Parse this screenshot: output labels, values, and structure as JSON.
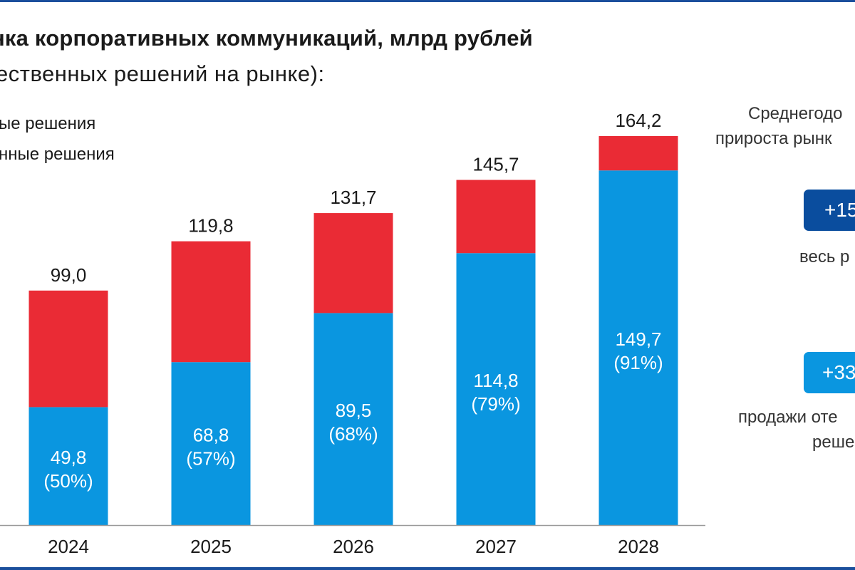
{
  "header": {
    "title": "нка корпоративных  коммуникаций, млрд рублей",
    "subtitle": "ественных  решений  на рынке):"
  },
  "legend": {
    "item1": "ые решения",
    "item2": "нные решения"
  },
  "side_panel": {
    "cagr_caption_line1": "Среднегодо",
    "cagr_caption_line2": "прироста рынк",
    "badge_total": "+15",
    "badge_total_caption": "весь р",
    "badge_domestic": "+33",
    "badge_domestic_caption_line1": "продажи оте",
    "badge_domestic_caption_line2": "реше",
    "colors": {
      "badge_total_bg": "#0a4d9e",
      "badge_domestic_bg": "#0a96e0"
    }
  },
  "chart_data": {
    "type": "bar",
    "stacked": true,
    "categories": [
      "2024",
      "2025",
      "2026",
      "2027",
      "2028"
    ],
    "series": [
      {
        "values": [
          49.8,
          68.8,
          89.5,
          114.8,
          149.7
        ],
        "color": "#0a96e0"
      },
      {
        "values": [
          49.2,
          51.0,
          42.2,
          30.9,
          14.5
        ],
        "color": "#ea2b35"
      }
    ],
    "totals": [
      99.0,
      119.8,
      131.7,
      145.7,
      164.2
    ],
    "total_labels": [
      "99,0",
      "119,8",
      "131,7",
      "145,7",
      "164,2"
    ],
    "segment_labels": [
      [
        "49,8",
        "(50%)"
      ],
      [
        "68,8",
        "(57%)"
      ],
      [
        "89,5",
        "(68%)"
      ],
      [
        "114,8",
        "(79%)"
      ],
      [
        "149,7",
        "(91%)"
      ]
    ],
    "ylim": [
      0,
      164.2
    ],
    "legend_position": "top-left",
    "grid": false
  }
}
